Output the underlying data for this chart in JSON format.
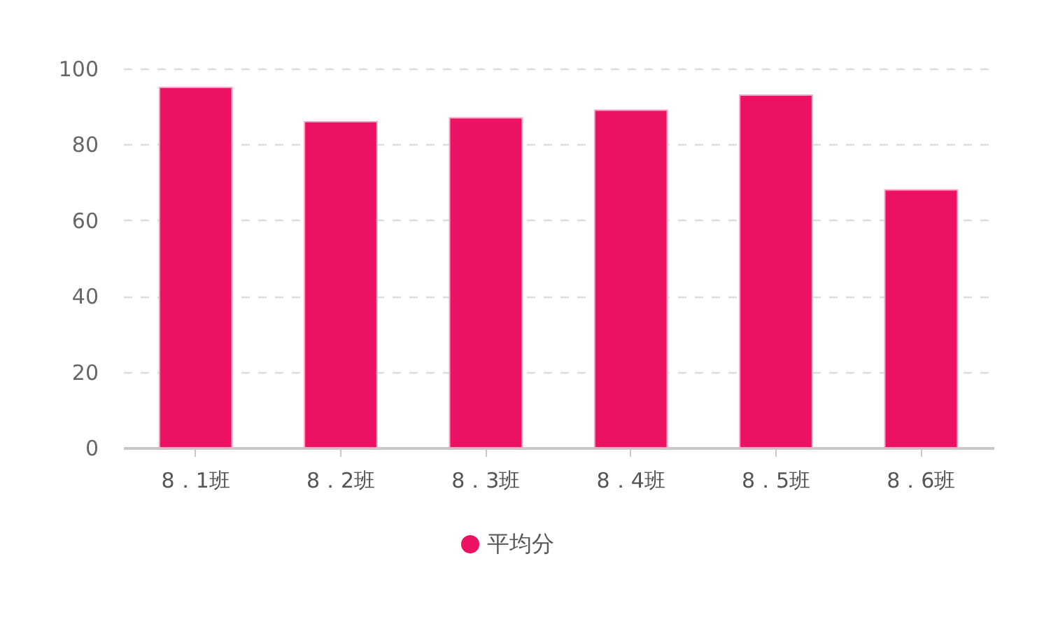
{
  "chart_data": {
    "type": "bar",
    "categories": [
      "8．1班",
      "8．2班",
      "8．3班",
      "8．4班",
      "8．5班",
      "8．6班"
    ],
    "series": [
      {
        "name": "平均分",
        "color": "#ec1163",
        "values": [
          95,
          86,
          87,
          89,
          93,
          68
        ]
      }
    ],
    "ylim": [
      0,
      100
    ],
    "yticks": [
      0,
      20,
      40,
      60,
      80,
      100
    ],
    "grid": "y",
    "legend": "bottom"
  }
}
